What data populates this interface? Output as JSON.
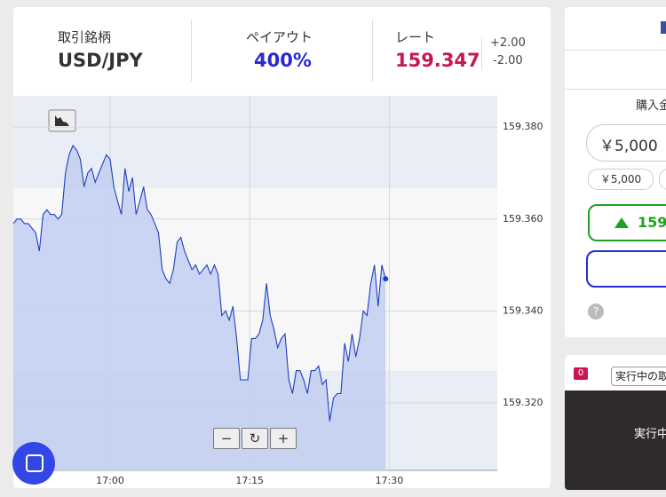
{
  "header": {
    "symbol_label": "取引銘柄",
    "symbol": "USD/JPY",
    "payout_label": "ペイアウト",
    "payout": "400%",
    "rate_label": "レート",
    "rate": "159.347",
    "spread_up": "+2.00",
    "spread_down": "-2.00"
  },
  "chart_data": {
    "type": "line",
    "x": [
      1009.6,
      1010.0,
      1010.4,
      1010.8,
      1011.2,
      1011.6,
      1012.0,
      1012.4,
      1012.8,
      1013.2,
      1013.6,
      1014.0,
      1014.4,
      1014.8,
      1015.2,
      1015.6,
      1016.0,
      1016.4,
      1016.8,
      1017.2,
      1017.6,
      1018.0,
      1018.4,
      1018.8,
      1019.2,
      1019.6,
      1020.0,
      1020.4,
      1020.8,
      1021.2,
      1021.6,
      1022.0,
      1022.4,
      1022.8,
      1023.2,
      1023.6,
      1024.0,
      1024.4,
      1024.8,
      1025.2,
      1025.6,
      1026.0,
      1026.4,
      1026.8,
      1027.2,
      1027.6,
      1028.0,
      1028.4,
      1028.8,
      1029.2,
      1029.6,
      1030.0,
      1030.4,
      1030.8,
      1031.2,
      1031.6,
      1032.0,
      1032.4,
      1032.8,
      1033.2,
      1033.6,
      1034.0,
      1034.4,
      1034.8,
      1035.2,
      1035.6,
      1036.0,
      1036.4,
      1036.8,
      1037.2,
      1037.6,
      1038.0,
      1038.4,
      1038.8,
      1039.2,
      1039.6,
      1040.0,
      1040.4,
      1040.8,
      1041.2,
      1041.6,
      1042.0,
      1042.4,
      1042.8,
      1043.2,
      1043.6,
      1044.0,
      1044.4,
      1044.8,
      1045.2,
      1045.6,
      1046.0,
      1046.4,
      1046.8,
      1047.2,
      1047.6,
      1048.0,
      1048.4,
      1048.8,
      1049.2,
      1049.6
    ],
    "values": [
      159.359,
      159.36,
      159.36,
      159.359,
      159.359,
      159.358,
      159.357,
      159.353,
      159.361,
      159.362,
      159.361,
      159.361,
      159.36,
      159.361,
      159.37,
      159.374,
      159.376,
      159.375,
      159.373,
      159.367,
      159.37,
      159.371,
      159.368,
      159.37,
      159.372,
      159.374,
      159.373,
      159.367,
      159.364,
      159.361,
      159.371,
      159.366,
      159.369,
      159.361,
      159.364,
      159.367,
      159.362,
      159.361,
      159.359,
      159.357,
      159.349,
      159.347,
      159.346,
      159.349,
      159.355,
      159.356,
      159.353,
      159.351,
      159.349,
      159.35,
      159.348,
      159.349,
      159.35,
      159.348,
      159.35,
      159.348,
      159.339,
      159.34,
      159.338,
      159.341,
      159.334,
      159.325,
      159.325,
      159.325,
      159.334,
      159.334,
      159.335,
      159.338,
      159.346,
      159.339,
      159.336,
      159.332,
      159.334,
      159.335,
      159.325,
      159.322,
      159.327,
      159.327,
      159.325,
      159.322,
      159.327,
      159.327,
      159.328,
      159.324,
      159.325,
      159.316,
      159.321,
      159.322,
      159.322,
      159.333,
      159.329,
      159.335,
      159.33,
      159.334,
      159.34,
      159.339,
      159.346,
      159.35,
      159.341,
      159.35,
      159.347
    ],
    "color": "#1f3fbf",
    "fill": "#c4cff2",
    "xlim": [
      1009.6,
      1061.6
    ],
    "ylim": [
      159.3053,
      159.3868
    ],
    "xticks": [
      {
        "value": 1020,
        "label": "17:00"
      },
      {
        "value": 1035,
        "label": "17:15"
      },
      {
        "value": 1050,
        "label": "17:30"
      }
    ],
    "yticks": [
      {
        "value": 159.32,
        "label": "159.320"
      },
      {
        "value": 159.34,
        "label": "159.340"
      },
      {
        "value": 159.36,
        "label": "159.360"
      },
      {
        "value": 159.38,
        "label": "159.380"
      }
    ],
    "grid": true
  },
  "purchase": {
    "label": "購入金",
    "amount": "￥5,000",
    "preset": "￥5,000",
    "high_button": "159."
  },
  "trades": {
    "count": 0,
    "title": "実行中の取",
    "status": "実行中"
  }
}
